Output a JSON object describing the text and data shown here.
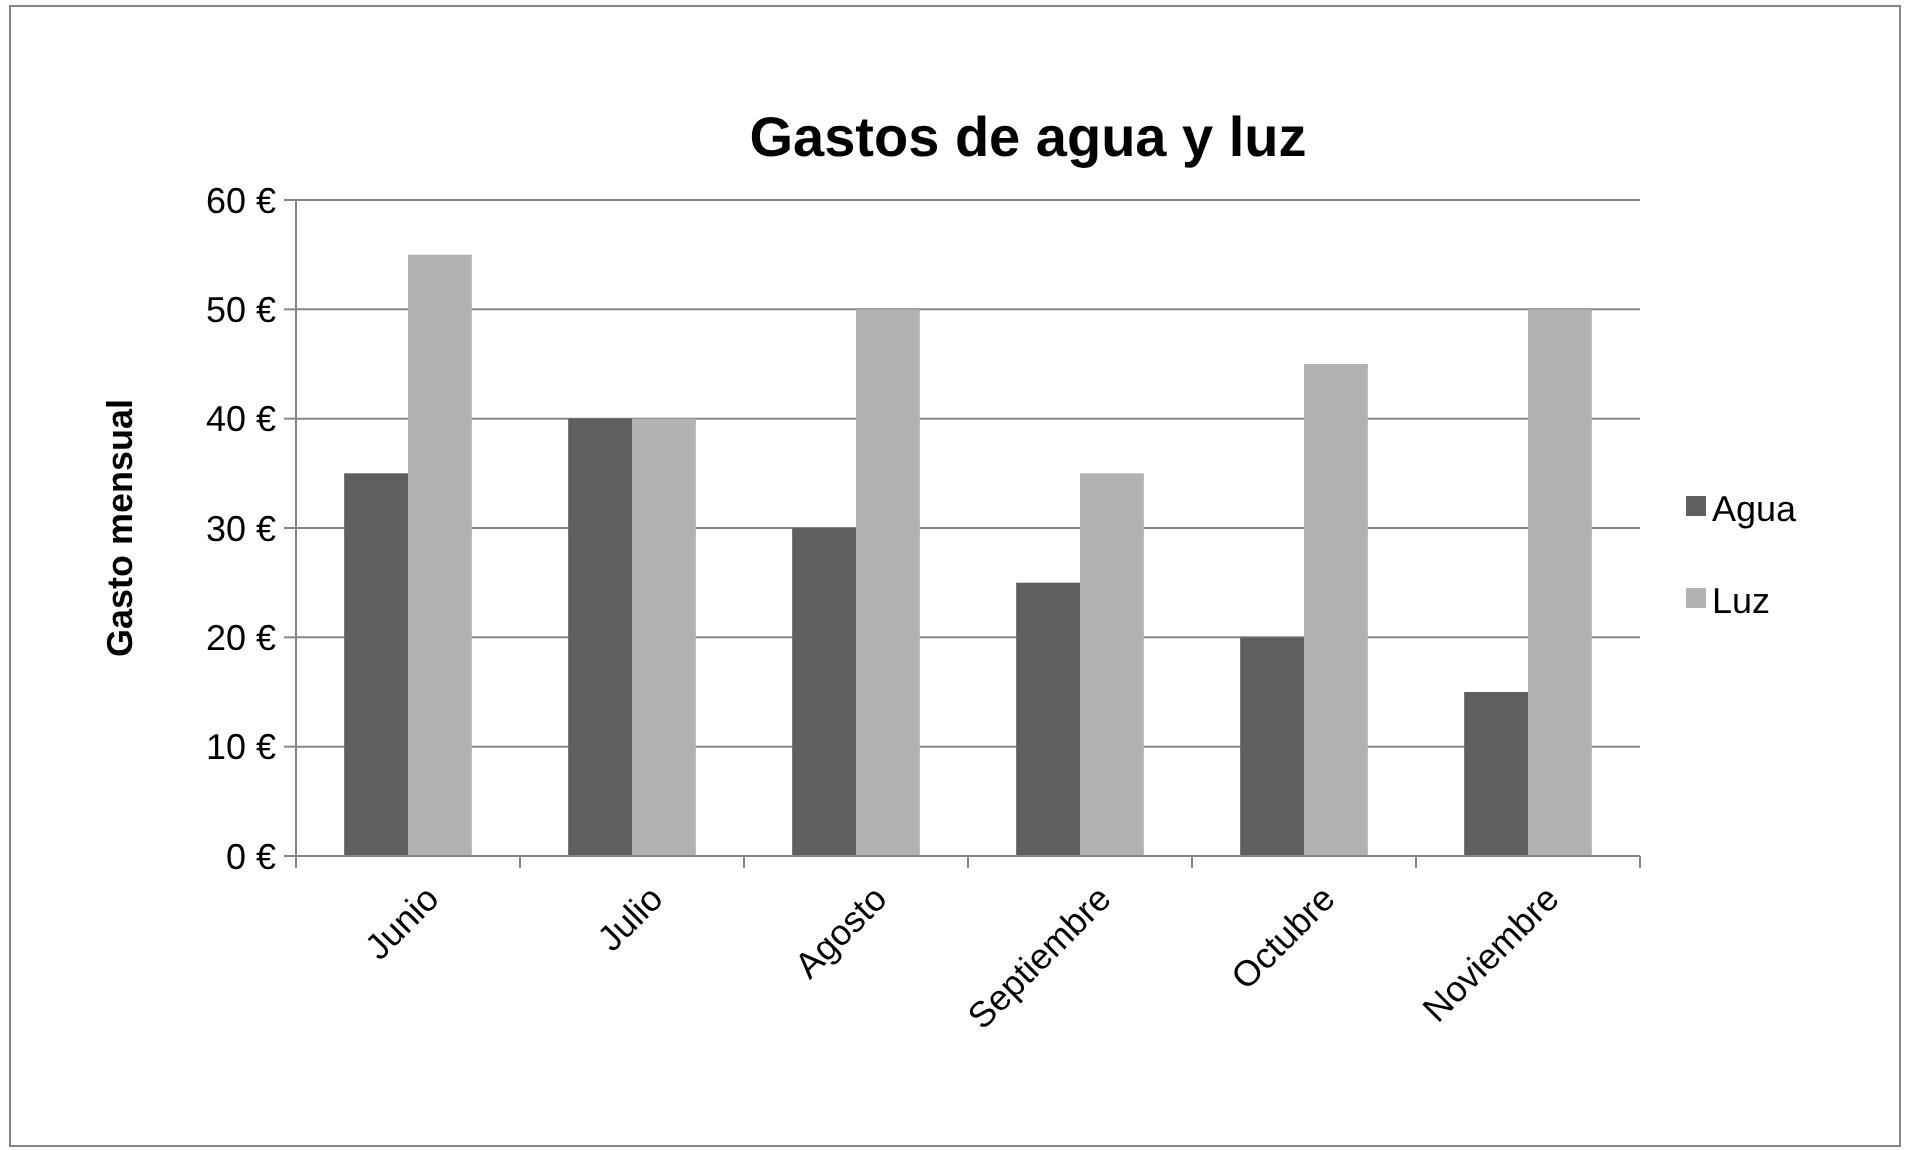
{
  "chart_data": {
    "type": "bar",
    "title": "Gastos de agua y luz",
    "ylabel": "Gasto mensual",
    "categories": [
      "Junio",
      "Julio",
      "Agosto",
      "Septiembre",
      "Octubre",
      "Noviembre"
    ],
    "series": [
      {
        "name": "Agua",
        "color": "#5f5f5f",
        "values": [
          35,
          40,
          30,
          25,
          20,
          15
        ]
      },
      {
        "name": "Luz",
        "color": "#b2b2b2",
        "values": [
          55,
          40,
          50,
          35,
          45,
          50
        ]
      }
    ],
    "ylim": [
      0,
      60
    ],
    "yticks": [
      {
        "value": 0,
        "label": "0 €"
      },
      {
        "value": 10,
        "label": "10 €"
      },
      {
        "value": 20,
        "label": "20 €"
      },
      {
        "value": 30,
        "label": "30 €"
      },
      {
        "value": 40,
        "label": "40 €"
      },
      {
        "value": 50,
        "label": "50 €"
      },
      {
        "value": 60,
        "label": "60 €"
      }
    ],
    "grid": "y",
    "legend": "right"
  }
}
